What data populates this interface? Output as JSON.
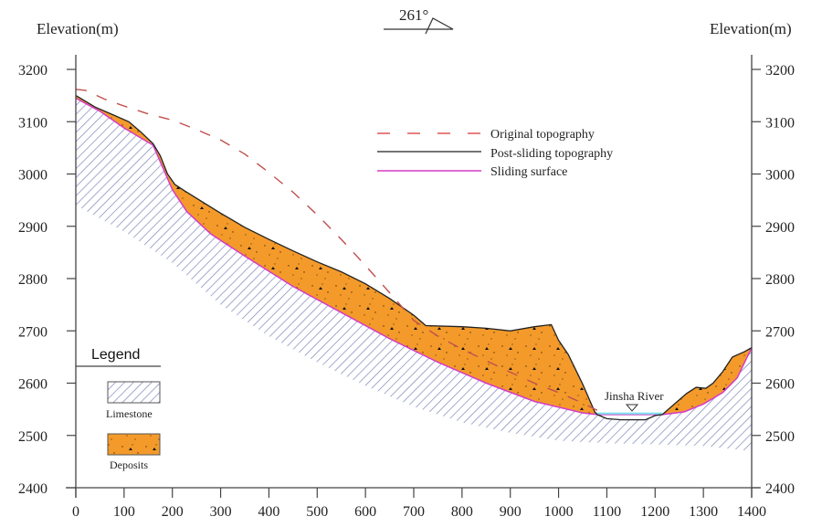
{
  "figure": {
    "left_axis_label": "Elevation(m)",
    "right_axis_label": "Elevation(m)",
    "orientation_label": "261°",
    "river_label": "Jinsha River",
    "legend_title": "Legend",
    "colors": {
      "deposits_fill": "#f39a2b",
      "limestone_hatch": "#7d86b8",
      "original_topography": "#c0504d",
      "post_sliding_topography": "#222222",
      "sliding_surface": "#d63bc8",
      "river_water": "#7fe3ee",
      "axis": "#444444"
    }
  },
  "chart_data": {
    "type": "line",
    "title": "",
    "xlabel": "",
    "ylabel": "Elevation(m)",
    "xlim": [
      0,
      1400
    ],
    "ylim": [
      2400,
      3200
    ],
    "x_ticks": [
      0,
      100,
      200,
      300,
      400,
      500,
      600,
      700,
      800,
      900,
      1000,
      1100,
      1200,
      1300,
      1400
    ],
    "y_ticks": [
      2400,
      2500,
      2600,
      2700,
      2800,
      2900,
      3000,
      3100,
      3200
    ],
    "legend": {
      "placement": "top-right",
      "entries": [
        {
          "label": "Original topography",
          "style": "dashed",
          "color": "#c0504d"
        },
        {
          "label": "Post-sliding topography",
          "style": "solid",
          "color": "#222222"
        },
        {
          "label": "Sliding surface",
          "style": "solid",
          "color": "#d63bc8"
        }
      ]
    },
    "material_legend": [
      {
        "label": "Limestone",
        "pattern": "hatch"
      },
      {
        "label": "Deposits",
        "pattern": "dotted-orange"
      }
    ],
    "series": [
      {
        "name": "Original topography",
        "points": [
          [
            0,
            3162
          ],
          [
            20,
            3160
          ],
          [
            60,
            3143
          ],
          [
            100,
            3130
          ],
          [
            150,
            3115
          ],
          [
            200,
            3103
          ],
          [
            250,
            3085
          ],
          [
            300,
            3065
          ],
          [
            350,
            3038
          ],
          [
            400,
            3003
          ],
          [
            450,
            2965
          ],
          [
            500,
            2922
          ],
          [
            550,
            2875
          ],
          [
            600,
            2825
          ],
          [
            650,
            2773
          ],
          [
            700,
            2720
          ],
          [
            750,
            2690
          ],
          [
            800,
            2665
          ],
          [
            850,
            2643
          ],
          [
            900,
            2621
          ],
          [
            950,
            2600
          ],
          [
            1000,
            2582
          ],
          [
            1050,
            2562
          ],
          [
            1080,
            2548
          ]
        ]
      },
      {
        "name": "Post-sliding topography",
        "points": [
          [
            0,
            3150
          ],
          [
            40,
            3128
          ],
          [
            80,
            3112
          ],
          [
            110,
            3100
          ],
          [
            135,
            3080
          ],
          [
            160,
            3058
          ],
          [
            175,
            3035
          ],
          [
            190,
            3000
          ],
          [
            205,
            2980
          ],
          [
            225,
            2968
          ],
          [
            260,
            2948
          ],
          [
            300,
            2925
          ],
          [
            350,
            2898
          ],
          [
            400,
            2875
          ],
          [
            450,
            2853
          ],
          [
            500,
            2832
          ],
          [
            550,
            2813
          ],
          [
            600,
            2790
          ],
          [
            650,
            2762
          ],
          [
            700,
            2730
          ],
          [
            725,
            2710
          ],
          [
            800,
            2708
          ],
          [
            850,
            2705
          ],
          [
            900,
            2700
          ],
          [
            950,
            2708
          ],
          [
            985,
            2712
          ],
          [
            1000,
            2682
          ],
          [
            1020,
            2655
          ],
          [
            1050,
            2598
          ],
          [
            1075,
            2545
          ],
          [
            1080,
            2540
          ],
          [
            1100,
            2532
          ],
          [
            1130,
            2530
          ],
          [
            1180,
            2530
          ],
          [
            1200,
            2538
          ],
          [
            1215,
            2540
          ],
          [
            1240,
            2560
          ],
          [
            1265,
            2580
          ],
          [
            1285,
            2592
          ],
          [
            1305,
            2590
          ],
          [
            1320,
            2600
          ],
          [
            1340,
            2622
          ],
          [
            1360,
            2650
          ],
          [
            1385,
            2660
          ],
          [
            1400,
            2668
          ]
        ]
      },
      {
        "name": "Sliding surface",
        "points": [
          [
            0,
            3145
          ],
          [
            50,
            3120
          ],
          [
            100,
            3088
          ],
          [
            160,
            3055
          ],
          [
            200,
            2970
          ],
          [
            230,
            2928
          ],
          [
            280,
            2885
          ],
          [
            350,
            2843
          ],
          [
            450,
            2785
          ],
          [
            550,
            2735
          ],
          [
            650,
            2685
          ],
          [
            750,
            2640
          ],
          [
            850,
            2600
          ],
          [
            950,
            2565
          ],
          [
            1050,
            2543
          ],
          [
            1080,
            2540
          ],
          [
            1215,
            2540
          ],
          [
            1260,
            2545
          ],
          [
            1300,
            2560
          ],
          [
            1340,
            2582
          ],
          [
            1370,
            2610
          ],
          [
            1400,
            2668
          ]
        ]
      },
      {
        "name": "Jinsha River water level",
        "points": [
          [
            1078,
            2542
          ],
          [
            1215,
            2542
          ]
        ]
      }
    ],
    "limestone_lower_boundary": [
      [
        0,
        2940
      ],
      [
        100,
        2890
      ],
      [
        200,
        2830
      ],
      [
        300,
        2750
      ],
      [
        400,
        2690
      ],
      [
        500,
        2640
      ],
      [
        600,
        2595
      ],
      [
        700,
        2555
      ],
      [
        800,
        2525
      ],
      [
        900,
        2505
      ],
      [
        1000,
        2490
      ],
      [
        1100,
        2485
      ],
      [
        1200,
        2483
      ],
      [
        1300,
        2480
      ],
      [
        1400,
        2470
      ]
    ]
  }
}
